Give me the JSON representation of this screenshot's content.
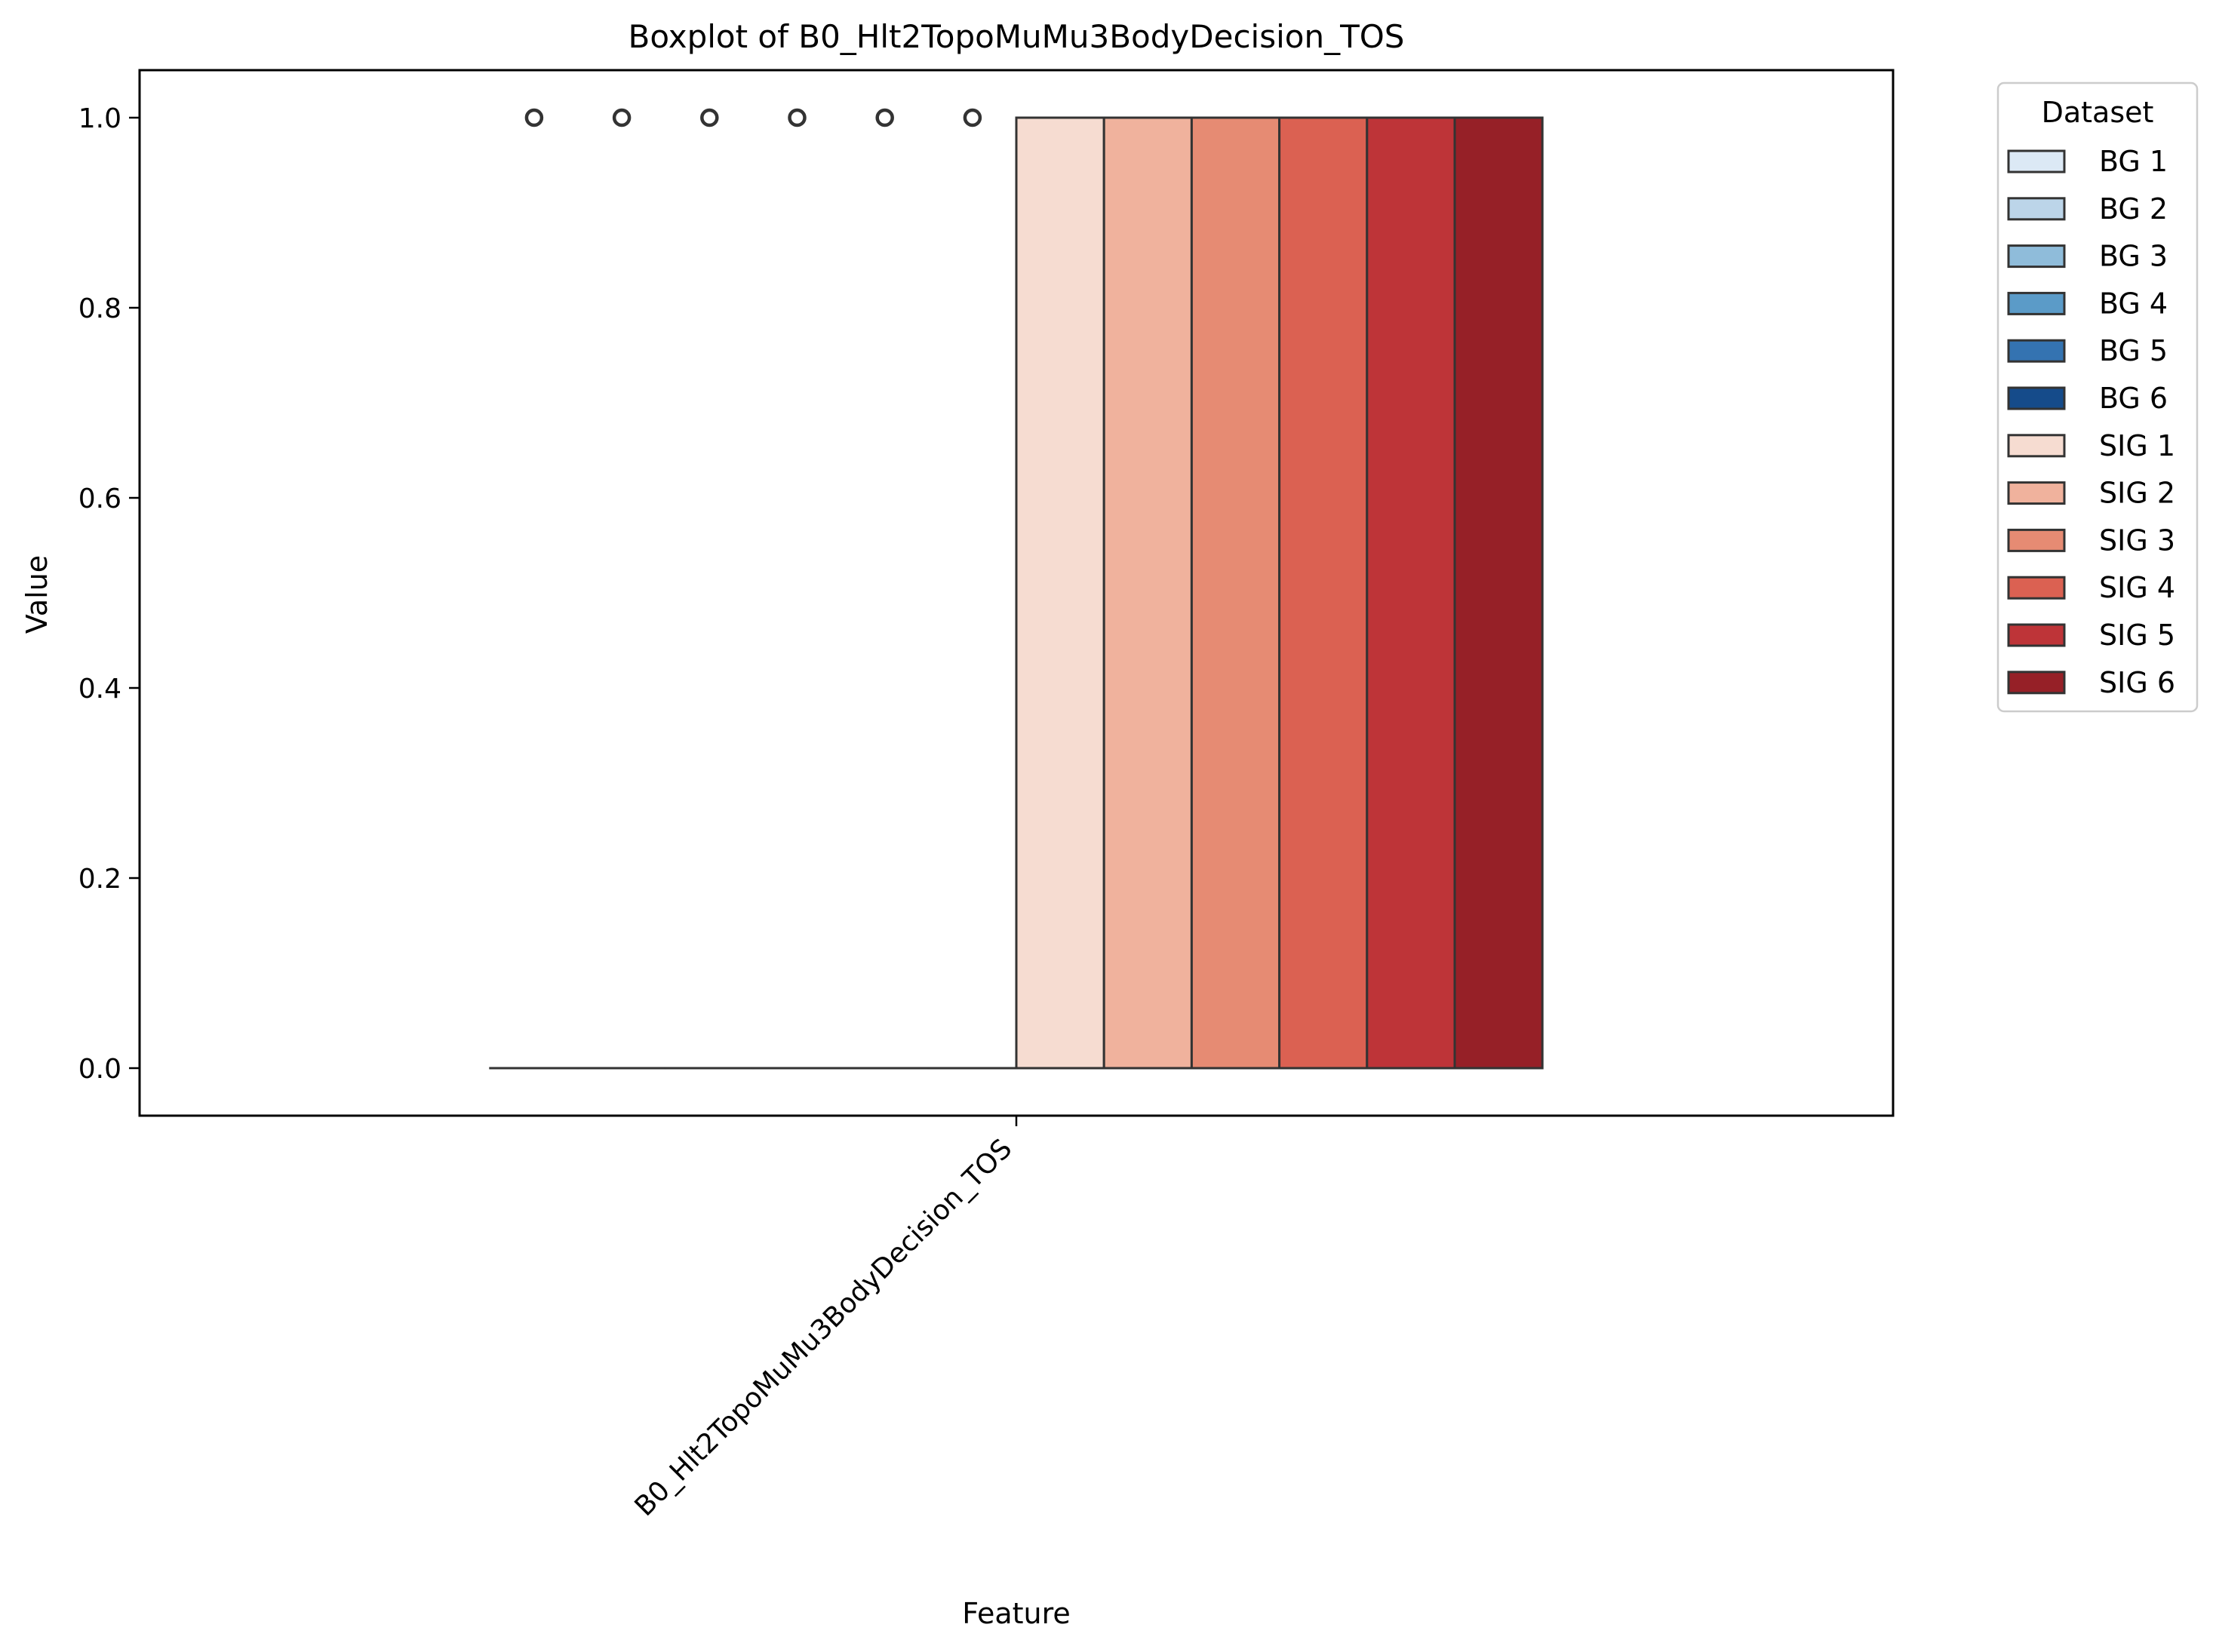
{
  "chart_data": {
    "type": "box",
    "title": "Boxplot of B0_Hlt2TopoMuMu3BodyDecision_TOS",
    "xlabel": "Feature",
    "ylabel": "Value",
    "categories": [
      "B0_Hlt2TopoMuMu3BodyDecision_TOS"
    ],
    "ylim": [
      -0.05,
      1.05
    ],
    "yticks": [
      0.0,
      0.2,
      0.4,
      0.6,
      0.8,
      1.0
    ],
    "ytick_labels": [
      "0.0",
      "0.2",
      "0.4",
      "0.6",
      "0.8",
      "1.0"
    ],
    "grid": false,
    "legend": {
      "title": "Dataset",
      "placement": "outside-top-right"
    },
    "series": [
      {
        "name": "BG 1",
        "color": "#dce9f5",
        "q1": 0,
        "median": 0,
        "q3": 0,
        "whisker_low": 0,
        "whisker_high": 0,
        "outliers": [
          1
        ]
      },
      {
        "name": "BG 2",
        "color": "#bcd5e9",
        "q1": 0,
        "median": 0,
        "q3": 0,
        "whisker_low": 0,
        "whisker_high": 0,
        "outliers": [
          1
        ]
      },
      {
        "name": "BG 3",
        "color": "#8fbcda",
        "q1": 0,
        "median": 0,
        "q3": 0,
        "whisker_low": 0,
        "whisker_high": 0,
        "outliers": [
          1
        ]
      },
      {
        "name": "BG 4",
        "color": "#5b9bc8",
        "q1": 0,
        "median": 0,
        "q3": 0,
        "whisker_low": 0,
        "whisker_high": 0,
        "outliers": [
          1
        ]
      },
      {
        "name": "BG 5",
        "color": "#3473b1",
        "q1": 0,
        "median": 0,
        "q3": 0,
        "whisker_low": 0,
        "whisker_high": 0,
        "outliers": [
          1
        ]
      },
      {
        "name": "BG 6",
        "color": "#154b8a",
        "q1": 0,
        "median": 0,
        "q3": 0,
        "whisker_low": 0,
        "whisker_high": 0,
        "outliers": [
          1
        ]
      },
      {
        "name": "SIG 1",
        "color": "#f6dcd1",
        "q1": 0,
        "median": 1,
        "q3": 1,
        "whisker_low": 0,
        "whisker_high": 1,
        "outliers": []
      },
      {
        "name": "SIG 2",
        "color": "#f0b29d",
        "q1": 0,
        "median": 1,
        "q3": 1,
        "whisker_low": 0,
        "whisker_high": 1,
        "outliers": []
      },
      {
        "name": "SIG 3",
        "color": "#e68b73",
        "q1": 0,
        "median": 1,
        "q3": 1,
        "whisker_low": 0,
        "whisker_high": 1,
        "outliers": []
      },
      {
        "name": "SIG 4",
        "color": "#db6152",
        "q1": 0,
        "median": 1,
        "q3": 1,
        "whisker_low": 0,
        "whisker_high": 1,
        "outliers": []
      },
      {
        "name": "SIG 5",
        "color": "#be3438",
        "q1": 0,
        "median": 1,
        "q3": 1,
        "whisker_low": 0,
        "whisker_high": 1,
        "outliers": []
      },
      {
        "name": "SIG 6",
        "color": "#962027",
        "q1": 0,
        "median": 1,
        "q3": 1,
        "whisker_low": 0,
        "whisker_high": 1,
        "outliers": []
      }
    ]
  }
}
